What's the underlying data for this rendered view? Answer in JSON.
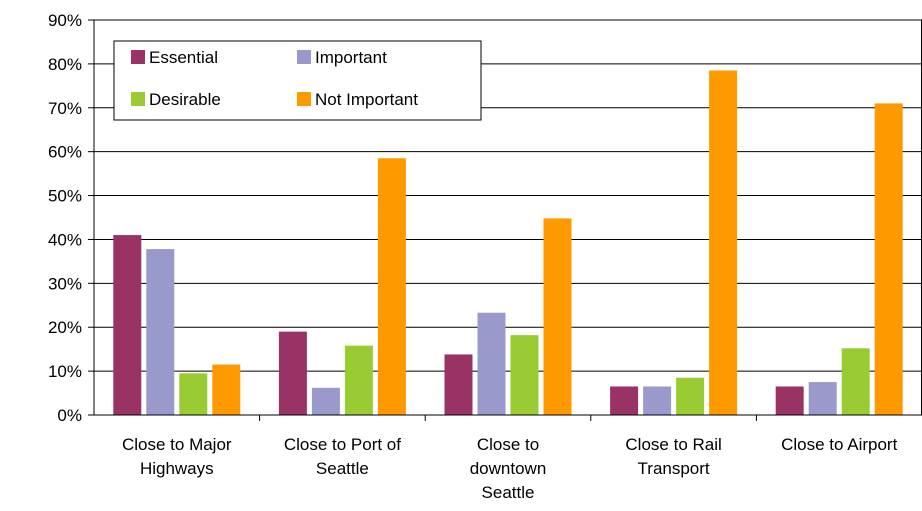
{
  "chart_data": {
    "type": "bar",
    "title": "",
    "xlabel": "",
    "ylabel": "",
    "ylim": [
      0,
      90
    ],
    "yticks": [
      "0%",
      "10%",
      "20%",
      "30%",
      "40%",
      "50%",
      "60%",
      "70%",
      "80%",
      "90%"
    ],
    "grid": true,
    "legend_position": "top-left",
    "categories": [
      [
        "Close to Major",
        "Highways"
      ],
      [
        "Close to Port of",
        "Seattle"
      ],
      [
        "Close to",
        "downtown",
        "Seattle"
      ],
      [
        "Close to Rail",
        "Transport"
      ],
      [
        "Close to Airport"
      ]
    ],
    "series": [
      {
        "name": "Essential",
        "color": "#993366",
        "values": [
          41.0,
          19.0,
          13.8,
          6.5,
          6.5
        ]
      },
      {
        "name": "Important",
        "color": "#9999cc",
        "values": [
          37.8,
          6.2,
          23.3,
          6.5,
          7.5
        ]
      },
      {
        "name": "Desirable",
        "color": "#99cc33",
        "values": [
          9.5,
          15.8,
          18.2,
          8.5,
          15.2
        ]
      },
      {
        "name": "Not Important",
        "color": "#ff9900",
        "values": [
          11.5,
          58.5,
          44.8,
          78.5,
          71.0
        ]
      }
    ]
  }
}
